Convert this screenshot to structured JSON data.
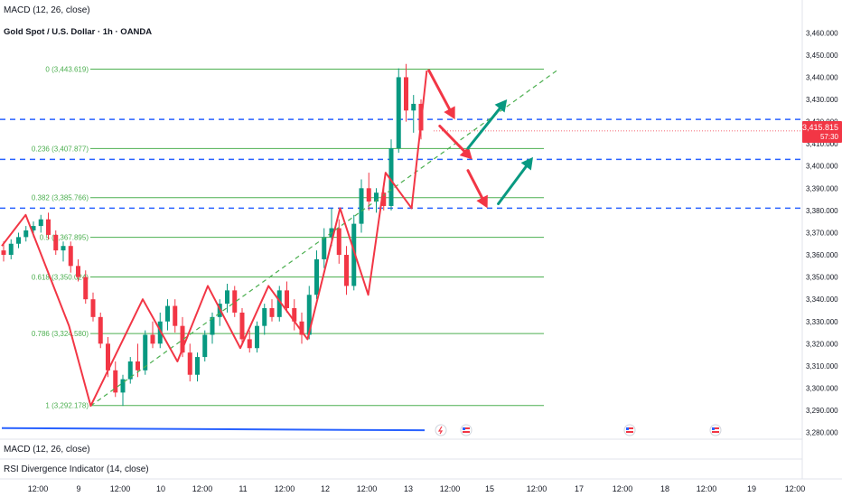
{
  "header": {
    "indicator_top": "MACD (12, 26, close)",
    "symbol": "Gold Spot / U.S. Dollar · 1h · OANDA"
  },
  "panes": {
    "macd": "MACD (12, 26, close)",
    "rsi": "RSI Divergence Indicator (14, close)"
  },
  "price_badge": {
    "price": "3,415.815",
    "countdown": "57:30",
    "color": "#f23645"
  },
  "colors": {
    "fib": "#4caf50",
    "fib_text": "#4caf50",
    "level": "#2962ff",
    "zigzag": "#f23645",
    "trend": "#4caf50",
    "arrow_down": "#f23645",
    "arrow_up": "#089981",
    "candle_up": "#089981",
    "candle_down": "#f23645"
  },
  "chart_data": {
    "type": "candlestick",
    "title": "Gold Spot / U.S. Dollar · 1h · OANDA",
    "ylim": [
      3277,
      3465
    ],
    "y_ticks": [
      {
        "v": 3460,
        "label": "3,460.000"
      },
      {
        "v": 3450,
        "label": "3,450.000"
      },
      {
        "v": 3440,
        "label": "3,440.000"
      },
      {
        "v": 3430,
        "label": "3,430.000"
      },
      {
        "v": 3420,
        "label": "3,420.000"
      },
      {
        "v": 3410,
        "label": "3,410.000"
      },
      {
        "v": 3400,
        "label": "3,400.000"
      },
      {
        "v": 3390,
        "label": "3,390.000"
      },
      {
        "v": 3380,
        "label": "3,380.000"
      },
      {
        "v": 3370,
        "label": "3,370.000"
      },
      {
        "v": 3360,
        "label": "3,360.000"
      },
      {
        "v": 3350,
        "label": "3,350.000"
      },
      {
        "v": 3340,
        "label": "3,340.000"
      },
      {
        "v": 3330,
        "label": "3,330.000"
      },
      {
        "v": 3320,
        "label": "3,320.000"
      },
      {
        "v": 3310,
        "label": "3,310.000"
      },
      {
        "v": 3300,
        "label": "3,300.000"
      },
      {
        "v": 3290,
        "label": "3,290.000"
      },
      {
        "v": 3280,
        "label": "3,280.000"
      }
    ],
    "x_ticks": [
      "12:00",
      "9",
      "12:00",
      "10",
      "12:00",
      "11",
      "12:00",
      "12",
      "12:00",
      "13",
      "12:00",
      "15",
      "12:00",
      "17",
      "12:00",
      "18",
      "12:00",
      "19",
      "12:00"
    ],
    "fib_levels": [
      {
        "ratio": "0",
        "price": 3443.619,
        "label": "0 (3,443.619)"
      },
      {
        "ratio": "0.236",
        "price": 3407.877,
        "label": "0.236 (3,407.877)"
      },
      {
        "ratio": "0.382",
        "price": 3385.766,
        "label": "0.382 (3,385.766)"
      },
      {
        "ratio": "0.5",
        "price": 3367.895,
        "label": "0.5 (3,367.895)"
      },
      {
        "ratio": "0.618",
        "price": 3350.024,
        "label": "0.618 (3,350.024)"
      },
      {
        "ratio": "0.786",
        "price": 3324.58,
        "label": "0.786 (3,324.580)"
      },
      {
        "ratio": "1",
        "price": 3292.178,
        "label": "1 (3,292.178)"
      }
    ],
    "horizontal_levels": [
      3421,
      3403,
      3381
    ],
    "current_price": 3415.815,
    "zigzag": [
      {
        "t": 0,
        "p": 3364
      },
      {
        "t": 11,
        "p": 3378
      },
      {
        "t": 31,
        "p": 3328
      },
      {
        "t": 41,
        "p": 3292
      },
      {
        "t": 65,
        "p": 3340
      },
      {
        "t": 81,
        "p": 3312
      },
      {
        "t": 95,
        "p": 3346
      },
      {
        "t": 110,
        "p": 3318
      },
      {
        "t": 123,
        "p": 3346
      },
      {
        "t": 141,
        "p": 3322
      },
      {
        "t": 156,
        "p": 3381
      },
      {
        "t": 169,
        "p": 3342
      },
      {
        "t": 177,
        "p": 3397
      },
      {
        "t": 189,
        "p": 3381
      },
      {
        "t": 196,
        "p": 3443
      }
    ],
    "trend_line": [
      {
        "t": 41,
        "p": 3292
      },
      {
        "t": 256,
        "p": 3443
      }
    ],
    "arrows_down": [
      [
        {
          "t": 197,
          "p": 3443
        },
        {
          "t": 209,
          "p": 3421
        }
      ],
      [
        {
          "t": 202,
          "p": 3418
        },
        {
          "t": 217,
          "p": 3403
        }
      ],
      [
        {
          "t": 215,
          "p": 3398
        },
        {
          "t": 224,
          "p": 3381
        }
      ]
    ],
    "arrows_up": [
      [
        {
          "t": 215,
          "p": 3408
        },
        {
          "t": 233,
          "p": 3430
        }
      ],
      [
        {
          "t": 229,
          "p": 3383
        },
        {
          "t": 245,
          "p": 3404
        }
      ]
    ],
    "candles": [
      {
        "o": 3362,
        "h": 3366,
        "l": 3357,
        "c": 3360
      },
      {
        "o": 3360,
        "h": 3367,
        "l": 3358,
        "c": 3365
      },
      {
        "o": 3365,
        "h": 3370,
        "l": 3363,
        "c": 3368
      },
      {
        "o": 3368,
        "h": 3373,
        "l": 3366,
        "c": 3371
      },
      {
        "o": 3371,
        "h": 3375,
        "l": 3368,
        "c": 3373
      },
      {
        "o": 3373,
        "h": 3378,
        "l": 3370,
        "c": 3376
      },
      {
        "o": 3376,
        "h": 3379,
        "l": 3367,
        "c": 3369
      },
      {
        "o": 3369,
        "h": 3371,
        "l": 3360,
        "c": 3362
      },
      {
        "o": 3362,
        "h": 3366,
        "l": 3357,
        "c": 3364
      },
      {
        "o": 3364,
        "h": 3366,
        "l": 3352,
        "c": 3355
      },
      {
        "o": 3355,
        "h": 3358,
        "l": 3348,
        "c": 3350
      },
      {
        "o": 3350,
        "h": 3353,
        "l": 3338,
        "c": 3340
      },
      {
        "o": 3340,
        "h": 3343,
        "l": 3330,
        "c": 3332
      },
      {
        "o": 3332,
        "h": 3334,
        "l": 3318,
        "c": 3320
      },
      {
        "o": 3320,
        "h": 3323,
        "l": 3305,
        "c": 3308
      },
      {
        "o": 3308,
        "h": 3312,
        "l": 3296,
        "c": 3298
      },
      {
        "o": 3298,
        "h": 3306,
        "l": 3292,
        "c": 3304
      },
      {
        "o": 3304,
        "h": 3314,
        "l": 3302,
        "c": 3312
      },
      {
        "o": 3312,
        "h": 3320,
        "l": 3305,
        "c": 3308
      },
      {
        "o": 3308,
        "h": 3326,
        "l": 3306,
        "c": 3324
      },
      {
        "o": 3324,
        "h": 3330,
        "l": 3318,
        "c": 3320
      },
      {
        "o": 3320,
        "h": 3334,
        "l": 3318,
        "c": 3330
      },
      {
        "o": 3330,
        "h": 3340,
        "l": 3326,
        "c": 3337
      },
      {
        "o": 3337,
        "h": 3340,
        "l": 3325,
        "c": 3328
      },
      {
        "o": 3328,
        "h": 3332,
        "l": 3314,
        "c": 3316
      },
      {
        "o": 3316,
        "h": 3320,
        "l": 3303,
        "c": 3306
      },
      {
        "o": 3306,
        "h": 3316,
        "l": 3303,
        "c": 3314
      },
      {
        "o": 3314,
        "h": 3326,
        "l": 3312,
        "c": 3324
      },
      {
        "o": 3324,
        "h": 3334,
        "l": 3320,
        "c": 3332
      },
      {
        "o": 3332,
        "h": 3340,
        "l": 3328,
        "c": 3338
      },
      {
        "o": 3338,
        "h": 3347,
        "l": 3334,
        "c": 3344
      },
      {
        "o": 3344,
        "h": 3346,
        "l": 3332,
        "c": 3334
      },
      {
        "o": 3334,
        "h": 3336,
        "l": 3320,
        "c": 3322
      },
      {
        "o": 3322,
        "h": 3326,
        "l": 3316,
        "c": 3318
      },
      {
        "o": 3318,
        "h": 3330,
        "l": 3316,
        "c": 3328
      },
      {
        "o": 3328,
        "h": 3338,
        "l": 3324,
        "c": 3336
      },
      {
        "o": 3336,
        "h": 3340,
        "l": 3330,
        "c": 3332
      },
      {
        "o": 3332,
        "h": 3346,
        "l": 3330,
        "c": 3344
      },
      {
        "o": 3344,
        "h": 3348,
        "l": 3334,
        "c": 3336
      },
      {
        "o": 3336,
        "h": 3340,
        "l": 3326,
        "c": 3330
      },
      {
        "o": 3330,
        "h": 3334,
        "l": 3320,
        "c": 3324
      },
      {
        "o": 3324,
        "h": 3346,
        "l": 3322,
        "c": 3342
      },
      {
        "o": 3342,
        "h": 3362,
        "l": 3340,
        "c": 3358
      },
      {
        "o": 3358,
        "h": 3372,
        "l": 3354,
        "c": 3368
      },
      {
        "o": 3368,
        "h": 3381,
        "l": 3364,
        "c": 3372
      },
      {
        "o": 3372,
        "h": 3376,
        "l": 3356,
        "c": 3360
      },
      {
        "o": 3360,
        "h": 3364,
        "l": 3342,
        "c": 3346
      },
      {
        "o": 3346,
        "h": 3378,
        "l": 3344,
        "c": 3374
      },
      {
        "o": 3374,
        "h": 3394,
        "l": 3370,
        "c": 3390
      },
      {
        "o": 3390,
        "h": 3397,
        "l": 3380,
        "c": 3384
      },
      {
        "o": 3384,
        "h": 3390,
        "l": 3379,
        "c": 3388
      },
      {
        "o": 3388,
        "h": 3392,
        "l": 3380,
        "c": 3382
      },
      {
        "o": 3382,
        "h": 3412,
        "l": 3380,
        "c": 3408
      },
      {
        "o": 3408,
        "h": 3444,
        "l": 3406,
        "c": 3440
      },
      {
        "o": 3440,
        "h": 3446,
        "l": 3420,
        "c": 3425
      },
      {
        "o": 3425,
        "h": 3432,
        "l": 3415,
        "c": 3428
      },
      {
        "o": 3428,
        "h": 3430,
        "l": 3412,
        "c": 3416
      }
    ],
    "macd_line": [
      {
        "t": 0,
        "p": 3282
      },
      {
        "t": 195,
        "p": 3281
      }
    ]
  }
}
